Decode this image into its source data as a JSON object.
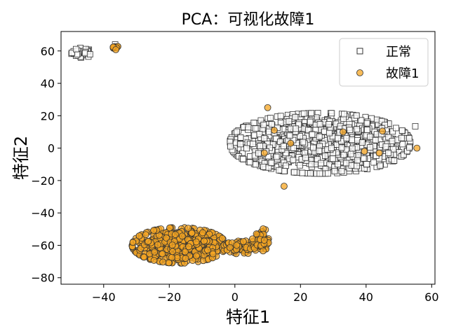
{
  "chart_data": {
    "type": "scatter",
    "title": "PCA：可视化故障1",
    "xlabel": "特征1",
    "ylabel": "特征2",
    "xlim": [
      -53,
      61
    ],
    "ylim": [
      -84,
      72
    ],
    "xticks": [
      -40,
      -20,
      0,
      20,
      40,
      60
    ],
    "yticks": [
      -80,
      -60,
      -40,
      -20,
      0,
      20,
      40,
      60
    ],
    "xtick_labels": [
      "−40",
      "−20",
      "0",
      "20",
      "40",
      "60"
    ],
    "ytick_labels": [
      "−80",
      "−60",
      "−40",
      "−20",
      "0",
      "20",
      "40",
      "60"
    ],
    "grid": false,
    "legend_position": "top-right",
    "series": [
      {
        "name": "正常",
        "marker": "square",
        "color": "#ffffff",
        "edge_color": "#333333",
        "clusters": [
          {
            "center": [
              -46.5,
              59
            ],
            "spread": [
              1.6,
              1.4
            ],
            "count": 40
          },
          {
            "center": [
              26,
              3
            ],
            "spread": [
              12.5,
              8.5
            ],
            "count": 1200
          }
        ],
        "points": [
          [
            55,
            13.5
          ],
          [
            -36.5,
            64
          ]
        ]
      },
      {
        "name": "故障1",
        "marker": "circle",
        "color": "#f5a623",
        "edge_color": "#333333",
        "clusters": [
          {
            "center": [
              -36.5,
              62.5
            ],
            "spread": [
              0.6,
              0.8
            ],
            "count": 10
          },
          {
            "center": [
              -17,
              -60
            ],
            "spread": [
              6.5,
              5
            ],
            "count": 700
          },
          {
            "center": [
              2,
              -61
            ],
            "spread": [
              2.2,
              2
            ],
            "count": 60
          },
          {
            "center": [
              8,
              -57
            ],
            "spread": [
              1.2,
              3.5
            ],
            "count": 60
          }
        ],
        "points": [
          [
            10,
            25
          ],
          [
            12,
            11
          ],
          [
            17,
            3
          ],
          [
            9,
            -3
          ],
          [
            15,
            -23.5
          ],
          [
            33,
            10
          ],
          [
            39.5,
            -2
          ],
          [
            44,
            -3
          ],
          [
            45,
            10.5
          ],
          [
            55.5,
            0
          ]
        ]
      }
    ]
  }
}
